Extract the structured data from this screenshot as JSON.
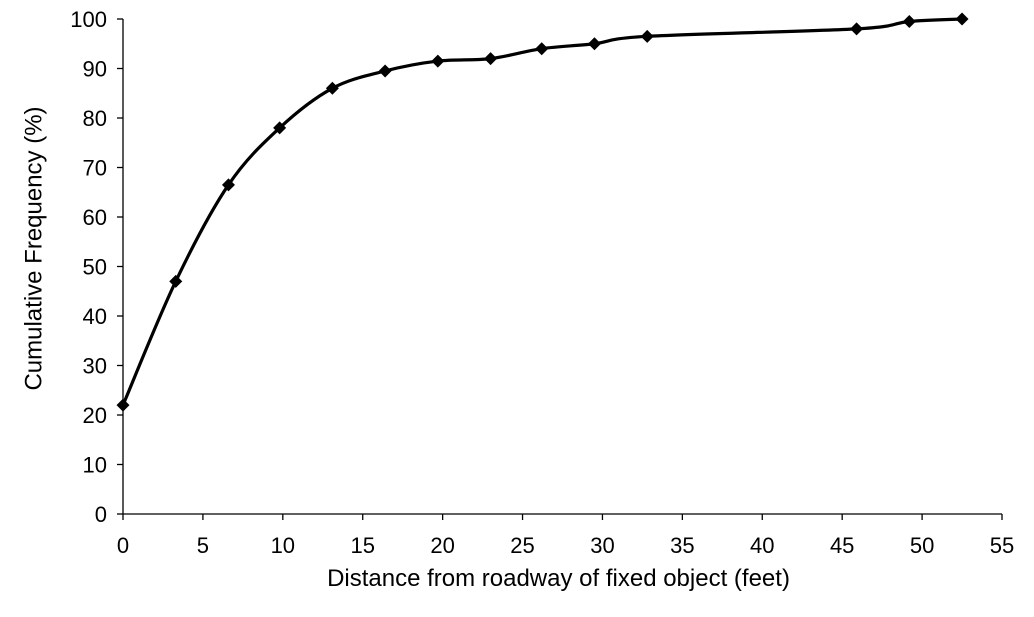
{
  "chart_data": {
    "type": "line",
    "title": "",
    "xlabel": "Distance from roadway of fixed object (feet)",
    "ylabel": "Cumulative Frequency (%)",
    "xlim": [
      0,
      55
    ],
    "ylim": [
      0,
      100
    ],
    "xticks": [
      0,
      5,
      10,
      15,
      20,
      25,
      30,
      35,
      40,
      45,
      50,
      55
    ],
    "yticks": [
      0,
      10,
      20,
      30,
      40,
      50,
      60,
      70,
      80,
      90,
      100
    ],
    "grid": false,
    "legend": "none",
    "smooth": true,
    "series": [
      {
        "color": "#000000",
        "marker": "diamond",
        "x": [
          0,
          3.3,
          6.6,
          9.8,
          13.1,
          16.4,
          19.7,
          23,
          26.2,
          29.5,
          32.8,
          45.9,
          49.2,
          52.5
        ],
        "y": [
          22,
          47,
          66.5,
          78,
          86,
          89.5,
          91.5,
          92,
          94,
          95,
          96.5,
          98,
          99.5,
          100
        ]
      }
    ]
  }
}
